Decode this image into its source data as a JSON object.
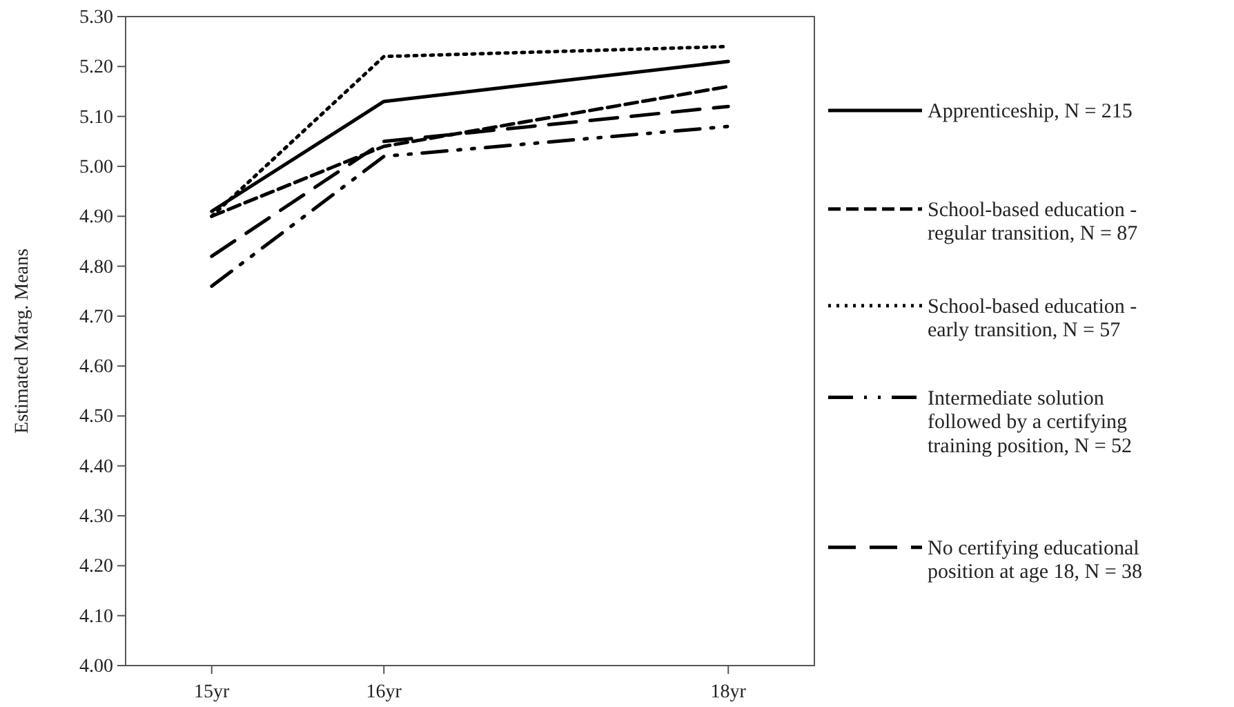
{
  "chart_data": {
    "type": "line",
    "ylabel": "Estimated Marg. Means",
    "x": [
      15,
      16,
      18
    ],
    "xlim": [
      14.5,
      18.5
    ],
    "xticks": [
      {
        "value": 15,
        "label": "15yr"
      },
      {
        "value": 16,
        "label": "16yr"
      },
      {
        "value": 18,
        "label": "18yr"
      }
    ],
    "ylim": [
      4.0,
      5.3
    ],
    "yticks": [
      {
        "value": 4.0,
        "label": "4.00"
      },
      {
        "value": 4.1,
        "label": "4.10"
      },
      {
        "value": 4.2,
        "label": "4.20"
      },
      {
        "value": 4.3,
        "label": "4.30"
      },
      {
        "value": 4.4,
        "label": "4.40"
      },
      {
        "value": 4.5,
        "label": "4.50"
      },
      {
        "value": 4.6,
        "label": "4.60"
      },
      {
        "value": 4.7,
        "label": "4.70"
      },
      {
        "value": 4.8,
        "label": "4.80"
      },
      {
        "value": 4.9,
        "label": "4.90"
      },
      {
        "value": 5.0,
        "label": "5.00"
      },
      {
        "value": 5.1,
        "label": "5.10"
      },
      {
        "value": 5.2,
        "label": "5.20"
      },
      {
        "value": 5.3,
        "label": "5.30"
      }
    ],
    "grid": false,
    "legend": "right",
    "marker": "none",
    "series": [
      {
        "name": "Apprenticeship, N = 215",
        "color": "#000000",
        "line_style": "solid",
        "values": [
          4.91,
          5.13,
          5.21
        ]
      },
      {
        "name": "School-based education - regular transition, N = 87",
        "color": "#000000",
        "line_style": "dashed",
        "values": [
          4.9,
          5.04,
          5.16
        ]
      },
      {
        "name": "School-based education - early transition, N = 57",
        "color": "#000000",
        "line_style": "dotted",
        "values": [
          4.9,
          5.22,
          5.24
        ]
      },
      {
        "name": "Intermediate solution followed by a certifying training position, N = 52",
        "color": "#000000",
        "line_style": "dashdot",
        "values": [
          4.76,
          5.02,
          5.08
        ]
      },
      {
        "name": "No certifying educational position at age 18, N = 38",
        "color": "#000000",
        "line_style": "longdash",
        "values": [
          4.82,
          5.05,
          5.12
        ]
      }
    ]
  }
}
